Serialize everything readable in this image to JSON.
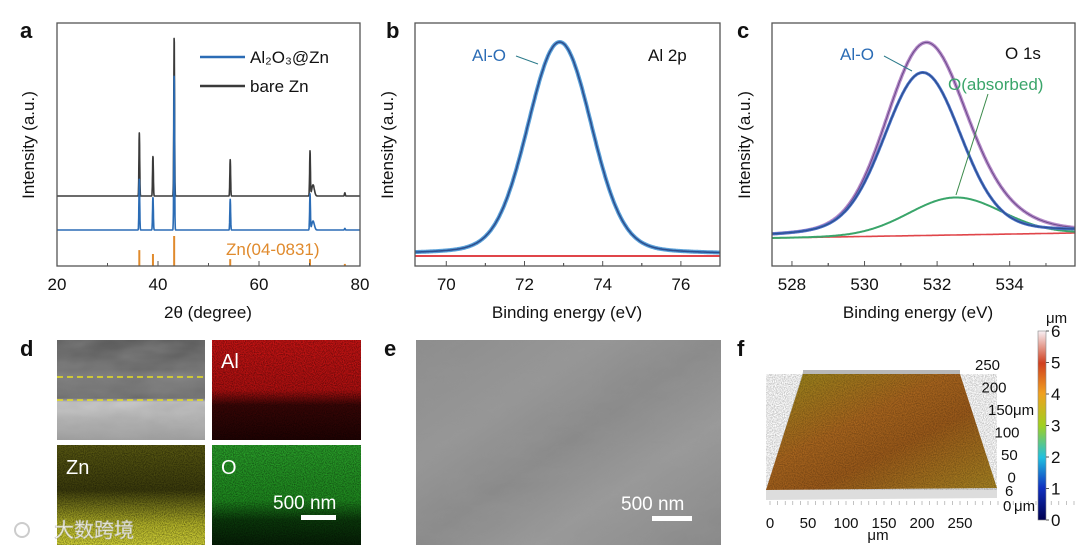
{
  "panel_labels": [
    "a",
    "b",
    "c",
    "d",
    "e",
    "f"
  ],
  "colors": {
    "blue": "#2b6cb5",
    "black": "#3a3a3a",
    "orange": "#e08a2c",
    "red": "#e0454a",
    "green": "#3aa56a",
    "purple": "#b58ac8",
    "navy": "#2c4f8f"
  },
  "chart_data": [
    {
      "id": "a",
      "type": "line",
      "title": "",
      "xlabel": "2θ (degree)",
      "ylabel": "Intensity (a.u.)",
      "xlim": [
        20,
        80
      ],
      "xticks": [
        "20",
        "40",
        "60",
        "80"
      ],
      "legend": {
        "placement": "top-right",
        "entries": [
          "Al₂O₃@Zn",
          "bare Zn"
        ]
      },
      "series": [
        {
          "name": "Al₂O₃@Zn",
          "color": "#2b6cb5",
          "peaks": [
            {
              "x": 36.3,
              "y": 33
            },
            {
              "x": 39.0,
              "y": 21
            },
            {
              "x": 43.2,
              "y": 100
            },
            {
              "x": 54.3,
              "y": 20
            },
            {
              "x": 70.1,
              "y": 23
            },
            {
              "x": 77.0,
              "y": 1
            }
          ]
        },
        {
          "name": "bare Zn",
          "color": "#3a3a3a",
          "peaks": [
            {
              "x": 36.3,
              "y": 40
            },
            {
              "x": 39.0,
              "y": 25
            },
            {
              "x": 43.2,
              "y": 100
            },
            {
              "x": 54.3,
              "y": 23
            },
            {
              "x": 70.1,
              "y": 28
            },
            {
              "x": 77.0,
              "y": 2
            }
          ]
        }
      ],
      "reference": {
        "name": "Zn(04-0831)",
        "color": "#e08a2c",
        "sticks": [
          {
            "x": 36.3,
            "y": 53
          },
          {
            "x": 39.0,
            "y": 40
          },
          {
            "x": 43.2,
            "y": 100
          },
          {
            "x": 54.3,
            "y": 23
          },
          {
            "x": 70.1,
            "y": 23
          },
          {
            "x": 77.0,
            "y": 7
          }
        ]
      }
    },
    {
      "id": "b",
      "type": "line",
      "title": "Al 2p",
      "xlabel": "Binding energy (eV)",
      "ylabel": "Intensity (a.u.)",
      "xlim": [
        69.2,
        77
      ],
      "xticks": [
        "70",
        "72",
        "74",
        "76"
      ],
      "annotations": [
        "Al-O"
      ],
      "series": [
        {
          "name": "Al-O",
          "color": "#2b6cb5",
          "center": 72.9,
          "fwhm": 1.87,
          "height": 100
        },
        {
          "name": "background",
          "color": "#e0454a",
          "center": 0,
          "fwhm": 0,
          "height": 0
        }
      ]
    },
    {
      "id": "c",
      "type": "line",
      "title": "O 1s",
      "xlabel": "Binding energy (eV)",
      "ylabel": "Intensity (a.u.)",
      "xlim": [
        527.45,
        535.8
      ],
      "xticks": [
        "528",
        "530",
        "532",
        "534"
      ],
      "annotations": [
        "Al-O",
        "O(absorbed)"
      ],
      "series": [
        {
          "name": "Al-O",
          "color": "#2c4f8f",
          "center": 531.6,
          "fwhm": 2.4,
          "height": 100
        },
        {
          "name": "O(absorbed)",
          "color": "#3aa56a",
          "center": 532.5,
          "fwhm": 3.0,
          "height": 23
        },
        {
          "name": "envelope",
          "color": "#b58ac8"
        },
        {
          "name": "background",
          "color": "#e0454a"
        }
      ]
    }
  ],
  "panel_d": {
    "labels": [
      "Al",
      "Zn",
      "O"
    ],
    "scale_bar": "500 nm"
  },
  "panel_e": {
    "scale_bar": "500 nm"
  },
  "panel_f": {
    "x_ticks": [
      "0",
      "50",
      "100",
      "150",
      "200",
      "250"
    ],
    "x_unit": "μm",
    "y_ticks": [
      "250",
      "200",
      "150",
      "100",
      "50",
      "0"
    ],
    "y_unit": "μm",
    "z_ticks": [
      "6",
      "0"
    ],
    "z_unit": "μm",
    "colorbar_unit": "μm",
    "colorbar_ticks": [
      "6",
      "5",
      "4",
      "3",
      "2",
      "1",
      "0"
    ],
    "colorbar_range": [
      0,
      6
    ]
  },
  "watermark": "大数跨境"
}
